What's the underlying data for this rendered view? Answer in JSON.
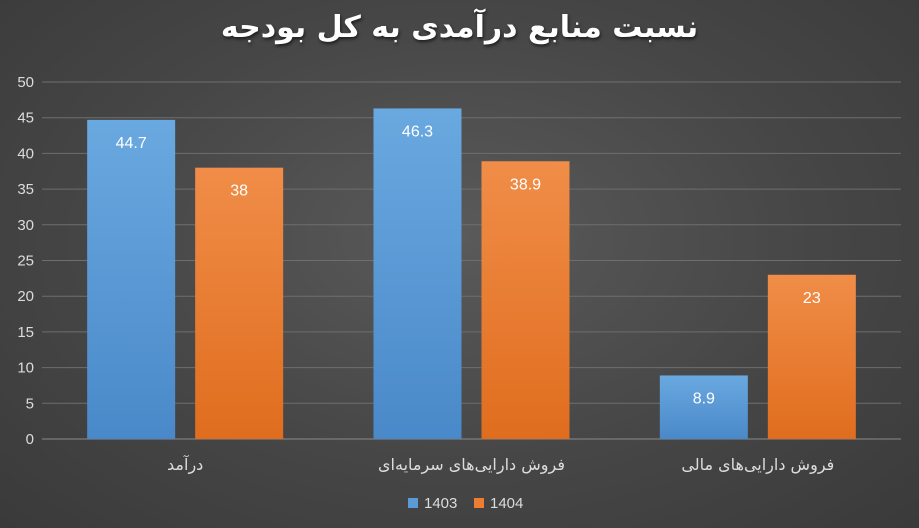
{
  "chart_data": {
    "type": "bar",
    "title": "نسبت منابع درآمدی به کل بودجه",
    "categories": [
      "درآمد",
      "فروش دارایی‌های سرمایه‌ای",
      "فروش دارایی‌های مالی"
    ],
    "series": [
      {
        "name": "1403",
        "values": [
          44.7,
          46.3,
          8.9
        ],
        "color": "#5b9bd5"
      },
      {
        "name": "1404",
        "values": [
          38,
          38.9,
          23
        ],
        "color": "#ed7d31"
      }
    ],
    "ylim": [
      0,
      50
    ],
    "yticks": [
      "0",
      "5",
      "10",
      "15",
      "20",
      "25",
      "30",
      "35",
      "40",
      "45",
      "50"
    ],
    "grid": true,
    "legend": "bottom",
    "colors": {
      "background": "#4a4a4a",
      "grid": "#6e6e6e",
      "text": "#dcdcdc"
    }
  }
}
